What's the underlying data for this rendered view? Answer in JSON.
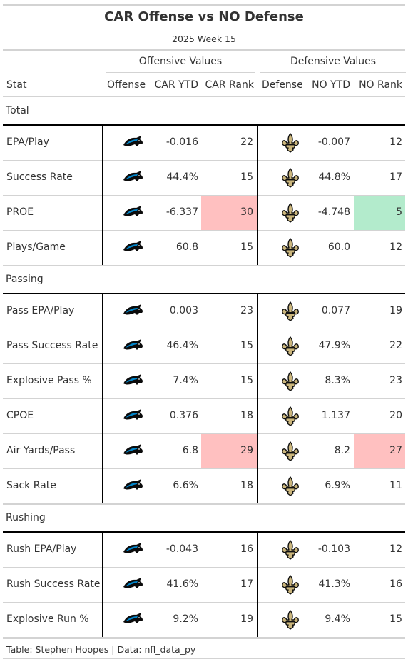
{
  "title": "CAR Offense vs NO Defense",
  "subtitle": "2025 Week 15",
  "spanners": {
    "offense": "Offensive Values",
    "defense": "Defensive Values"
  },
  "columns": [
    "Stat",
    "Offense",
    "CAR YTD",
    "CAR Rank",
    "Defense",
    "NO YTD",
    "NO Rank"
  ],
  "colors": {
    "red_highlight": "#ffc0c0",
    "green_highlight": "#b3ebcc",
    "panthers_blue": "#0085CA",
    "saints_gold": "#D3BC8D"
  },
  "icons": {
    "offense": "panthers-logo-icon",
    "defense": "saints-fleur-de-lis-icon"
  },
  "groups": [
    {
      "name": "Total",
      "rows": [
        {
          "stat": "EPA/Play",
          "car_ytd": "-0.016",
          "car_rank": "22",
          "no_ytd": "-0.007",
          "no_rank": "12",
          "car_rank_hl": "",
          "no_rank_hl": ""
        },
        {
          "stat": "Success Rate",
          "car_ytd": "44.4%",
          "car_rank": "15",
          "no_ytd": "44.8%",
          "no_rank": "17",
          "car_rank_hl": "",
          "no_rank_hl": ""
        },
        {
          "stat": "PROE",
          "car_ytd": "-6.337",
          "car_rank": "30",
          "no_ytd": "-4.748",
          "no_rank": "5",
          "car_rank_hl": "red",
          "no_rank_hl": "green"
        },
        {
          "stat": "Plays/Game",
          "car_ytd": "60.8",
          "car_rank": "15",
          "no_ytd": "60.0",
          "no_rank": "12",
          "car_rank_hl": "",
          "no_rank_hl": ""
        }
      ]
    },
    {
      "name": "Passing",
      "rows": [
        {
          "stat": "Pass EPA/Play",
          "car_ytd": "0.003",
          "car_rank": "23",
          "no_ytd": "0.077",
          "no_rank": "19",
          "car_rank_hl": "",
          "no_rank_hl": ""
        },
        {
          "stat": "Pass Success Rate",
          "car_ytd": "46.4%",
          "car_rank": "15",
          "no_ytd": "47.9%",
          "no_rank": "22",
          "car_rank_hl": "",
          "no_rank_hl": ""
        },
        {
          "stat": "Explosive Pass %",
          "car_ytd": "7.4%",
          "car_rank": "15",
          "no_ytd": "8.3%",
          "no_rank": "23",
          "car_rank_hl": "",
          "no_rank_hl": ""
        },
        {
          "stat": "CPOE",
          "car_ytd": "0.376",
          "car_rank": "18",
          "no_ytd": "1.137",
          "no_rank": "20",
          "car_rank_hl": "",
          "no_rank_hl": ""
        },
        {
          "stat": "Air Yards/Pass",
          "car_ytd": "6.8",
          "car_rank": "29",
          "no_ytd": "8.2",
          "no_rank": "27",
          "car_rank_hl": "red",
          "no_rank_hl": "red"
        },
        {
          "stat": "Sack Rate",
          "car_ytd": "6.6%",
          "car_rank": "18",
          "no_ytd": "6.9%",
          "no_rank": "11",
          "car_rank_hl": "",
          "no_rank_hl": ""
        }
      ]
    },
    {
      "name": "Rushing",
      "rows": [
        {
          "stat": "Rush EPA/Play",
          "car_ytd": "-0.043",
          "car_rank": "16",
          "no_ytd": "-0.103",
          "no_rank": "12",
          "car_rank_hl": "",
          "no_rank_hl": ""
        },
        {
          "stat": "Rush Success Rate",
          "car_ytd": "41.6%",
          "car_rank": "17",
          "no_ytd": "41.3%",
          "no_rank": "16",
          "car_rank_hl": "",
          "no_rank_hl": ""
        },
        {
          "stat": "Explosive Run %",
          "car_ytd": "9.2%",
          "car_rank": "19",
          "no_ytd": "9.4%",
          "no_rank": "15",
          "car_rank_hl": "",
          "no_rank_hl": ""
        }
      ]
    }
  ],
  "footer": "Table: Stephen Hoopes | Data: nfl_data_py"
}
